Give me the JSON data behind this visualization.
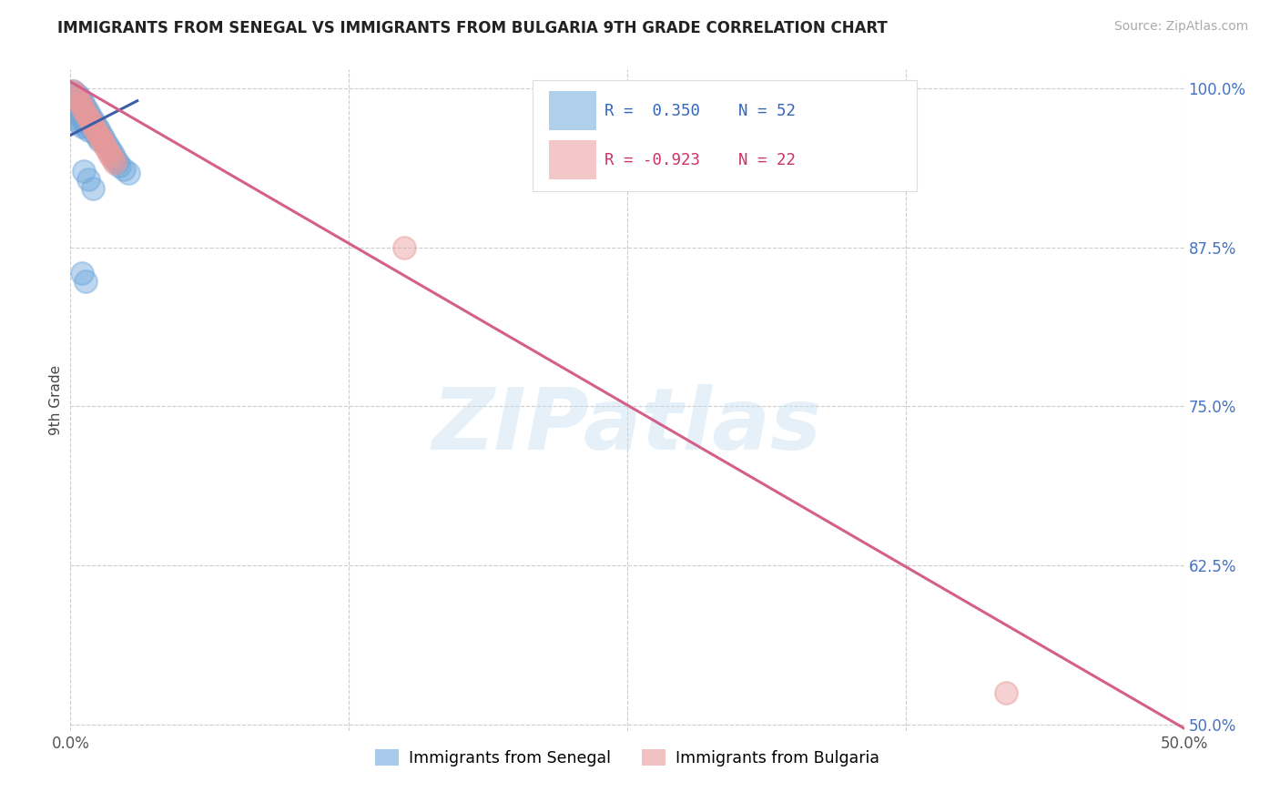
{
  "title": "IMMIGRANTS FROM SENEGAL VS IMMIGRANTS FROM BULGARIA 9TH GRADE CORRELATION CHART",
  "source_text": "Source: ZipAtlas.com",
  "ylabel": "9th Grade",
  "x_min": 0.0,
  "x_max": 0.5,
  "y_min": 0.495,
  "y_max": 1.015,
  "x_ticks": [
    0.0,
    0.125,
    0.25,
    0.375,
    0.5
  ],
  "x_tick_labels": [
    "0.0%",
    "",
    "",
    "",
    "50.0%"
  ],
  "y_ticks": [
    0.5,
    0.625,
    0.75,
    0.875,
    1.0
  ],
  "y_tick_labels": [
    "50.0%",
    "62.5%",
    "75.0%",
    "87.5%",
    "100.0%"
  ],
  "senegal_color": "#6fa8dc",
  "bulgaria_color": "#ea9999",
  "senegal_R": 0.35,
  "senegal_N": 52,
  "bulgaria_R": -0.923,
  "bulgaria_N": 22,
  "watermark": "ZIPatlas",
  "senegal_scatter_x": [
    0.001,
    0.001,
    0.002,
    0.002,
    0.002,
    0.003,
    0.003,
    0.003,
    0.003,
    0.004,
    0.004,
    0.004,
    0.004,
    0.005,
    0.005,
    0.005,
    0.005,
    0.006,
    0.006,
    0.006,
    0.007,
    0.007,
    0.007,
    0.008,
    0.008,
    0.008,
    0.009,
    0.009,
    0.01,
    0.01,
    0.011,
    0.011,
    0.012,
    0.012,
    0.013,
    0.013,
    0.014,
    0.015,
    0.016,
    0.017,
    0.018,
    0.019,
    0.02,
    0.021,
    0.022,
    0.024,
    0.026,
    0.006,
    0.008,
    0.01,
    0.005,
    0.007
  ],
  "senegal_scatter_y": [
    0.998,
    0.993,
    0.996,
    0.99,
    0.985,
    0.995,
    0.988,
    0.982,
    0.976,
    0.993,
    0.986,
    0.979,
    0.973,
    0.99,
    0.983,
    0.977,
    0.97,
    0.987,
    0.98,
    0.974,
    0.984,
    0.977,
    0.97,
    0.981,
    0.974,
    0.967,
    0.978,
    0.971,
    0.975,
    0.968,
    0.972,
    0.965,
    0.969,
    0.962,
    0.966,
    0.959,
    0.963,
    0.96,
    0.957,
    0.954,
    0.951,
    0.948,
    0.945,
    0.942,
    0.939,
    0.936,
    0.933,
    0.935,
    0.928,
    0.921,
    0.855,
    0.848
  ],
  "bulgaria_scatter_x": [
    0.001,
    0.002,
    0.003,
    0.004,
    0.005,
    0.006,
    0.007,
    0.008,
    0.009,
    0.01,
    0.011,
    0.012,
    0.013,
    0.014,
    0.015,
    0.016,
    0.017,
    0.018,
    0.019,
    0.02,
    0.15,
    0.42
  ],
  "bulgaria_scatter_y": [
    0.998,
    0.995,
    0.992,
    0.989,
    0.986,
    0.983,
    0.98,
    0.977,
    0.974,
    0.971,
    0.968,
    0.965,
    0.962,
    0.959,
    0.956,
    0.953,
    0.95,
    0.947,
    0.944,
    0.941,
    0.875,
    0.525
  ],
  "senegal_line": [
    0.0,
    0.03,
    0.963,
    0.99
  ],
  "bulgaria_line": [
    0.0,
    0.5,
    1.005,
    0.497
  ]
}
